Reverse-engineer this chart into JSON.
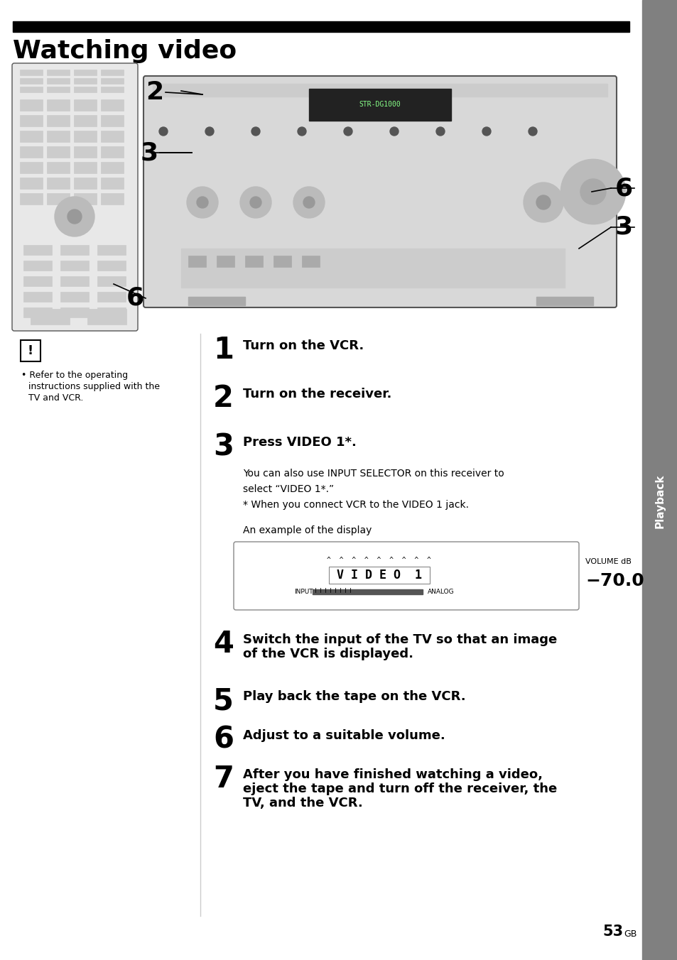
{
  "title": "Watching video",
  "page_number": "53",
  "page_suffix": "GB",
  "sidebar_text": "Playback",
  "bg_color": "#ffffff",
  "sidebar_color": "#808080",
  "header_bar_color": "#000000",
  "note_text_line1": "• Refer to the operating",
  "note_text_line2": "instructions supplied with the",
  "note_text_line3": "TV and VCR.",
  "step1_bold": "Turn on the VCR.",
  "step2_bold": "Turn on the receiver.",
  "step3_bold": "Press VIDEO 1*.",
  "step3_body1": "You can also use INPUT SELECTOR on this receiver to",
  "step3_body2": "select “VIDEO 1*.”",
  "step3_body3": "* When you connect VCR to the VIDEO 1 jack.",
  "display_label": "An example of the display",
  "display_volume_label": "VOLUME dB",
  "display_volume_value": "−70.0",
  "step4_bold1": "Switch the input of the TV so that an image",
  "step4_bold2": "of the VCR is displayed.",
  "step5_bold": "Play back the tape on the VCR.",
  "step6_bold": "Adjust to a suitable volume.",
  "step7_bold1": "After you have finished watching a video,",
  "step7_bold2": "eject the tape and turn off the receiver, the",
  "step7_bold3": "TV, and the VCR."
}
